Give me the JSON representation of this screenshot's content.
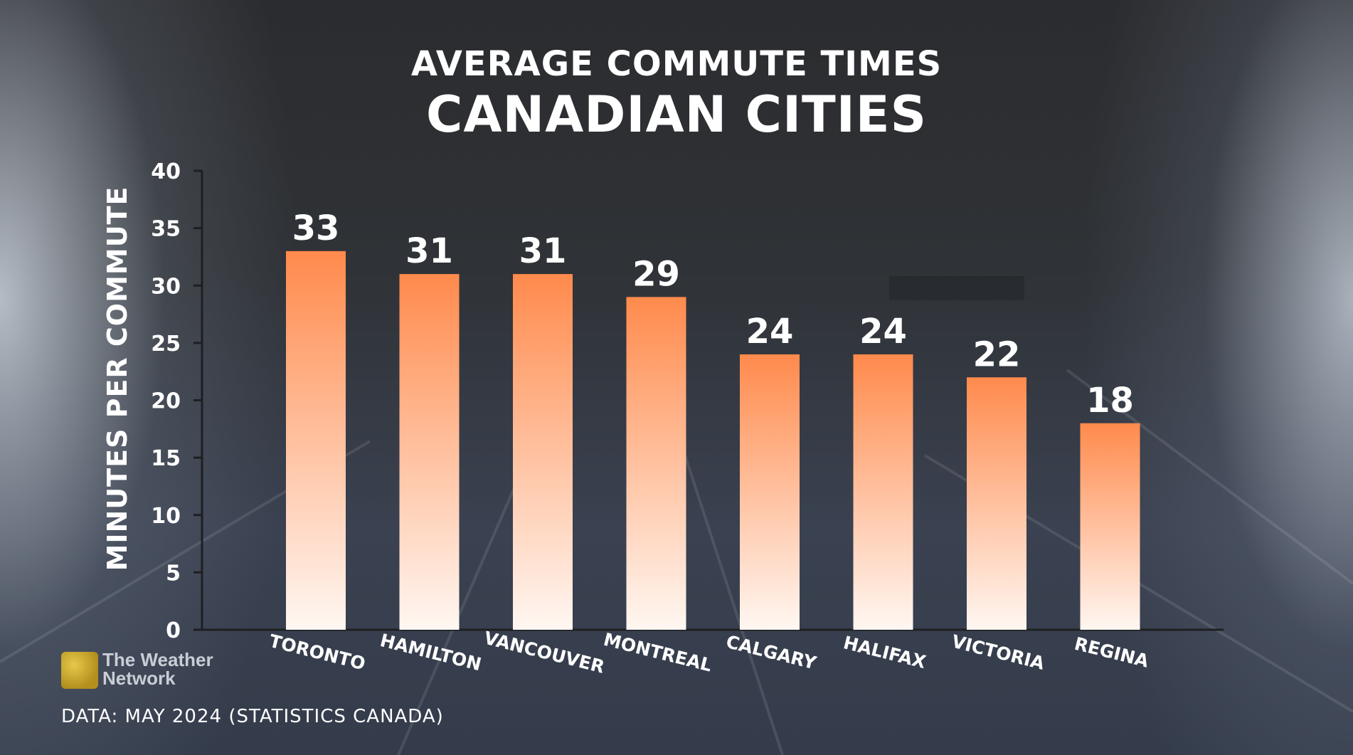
{
  "title_line1": "AVERAGE COMMUTE TIMES",
  "title_line2": "CANADIAN CITIES",
  "chart_data": {
    "type": "bar",
    "title": "AVERAGE COMMUTE TIMES CANADIAN CITIES",
    "xlabel": "",
    "ylabel": "MINUTES PER COMMUTE",
    "categories": [
      "TORONTO",
      "HAMILTON",
      "VANCOUVER",
      "MONTREAL",
      "CALGARY",
      "HALIFAX",
      "VICTORIA",
      "REGINA"
    ],
    "values": [
      33,
      31,
      31,
      29,
      24,
      24,
      22,
      18
    ],
    "ylim": [
      0,
      40
    ],
    "yticks": [
      0,
      5,
      10,
      15,
      20,
      25,
      30,
      35,
      40
    ],
    "grid": false,
    "bar_color_top": "#ff8a4c",
    "bar_color_bottom": "#fff7f2"
  },
  "logo": {
    "line1": "The Weather",
    "line2": "Network"
  },
  "source": "DATA: MAY 2024 (STATISTICS CANADA)"
}
